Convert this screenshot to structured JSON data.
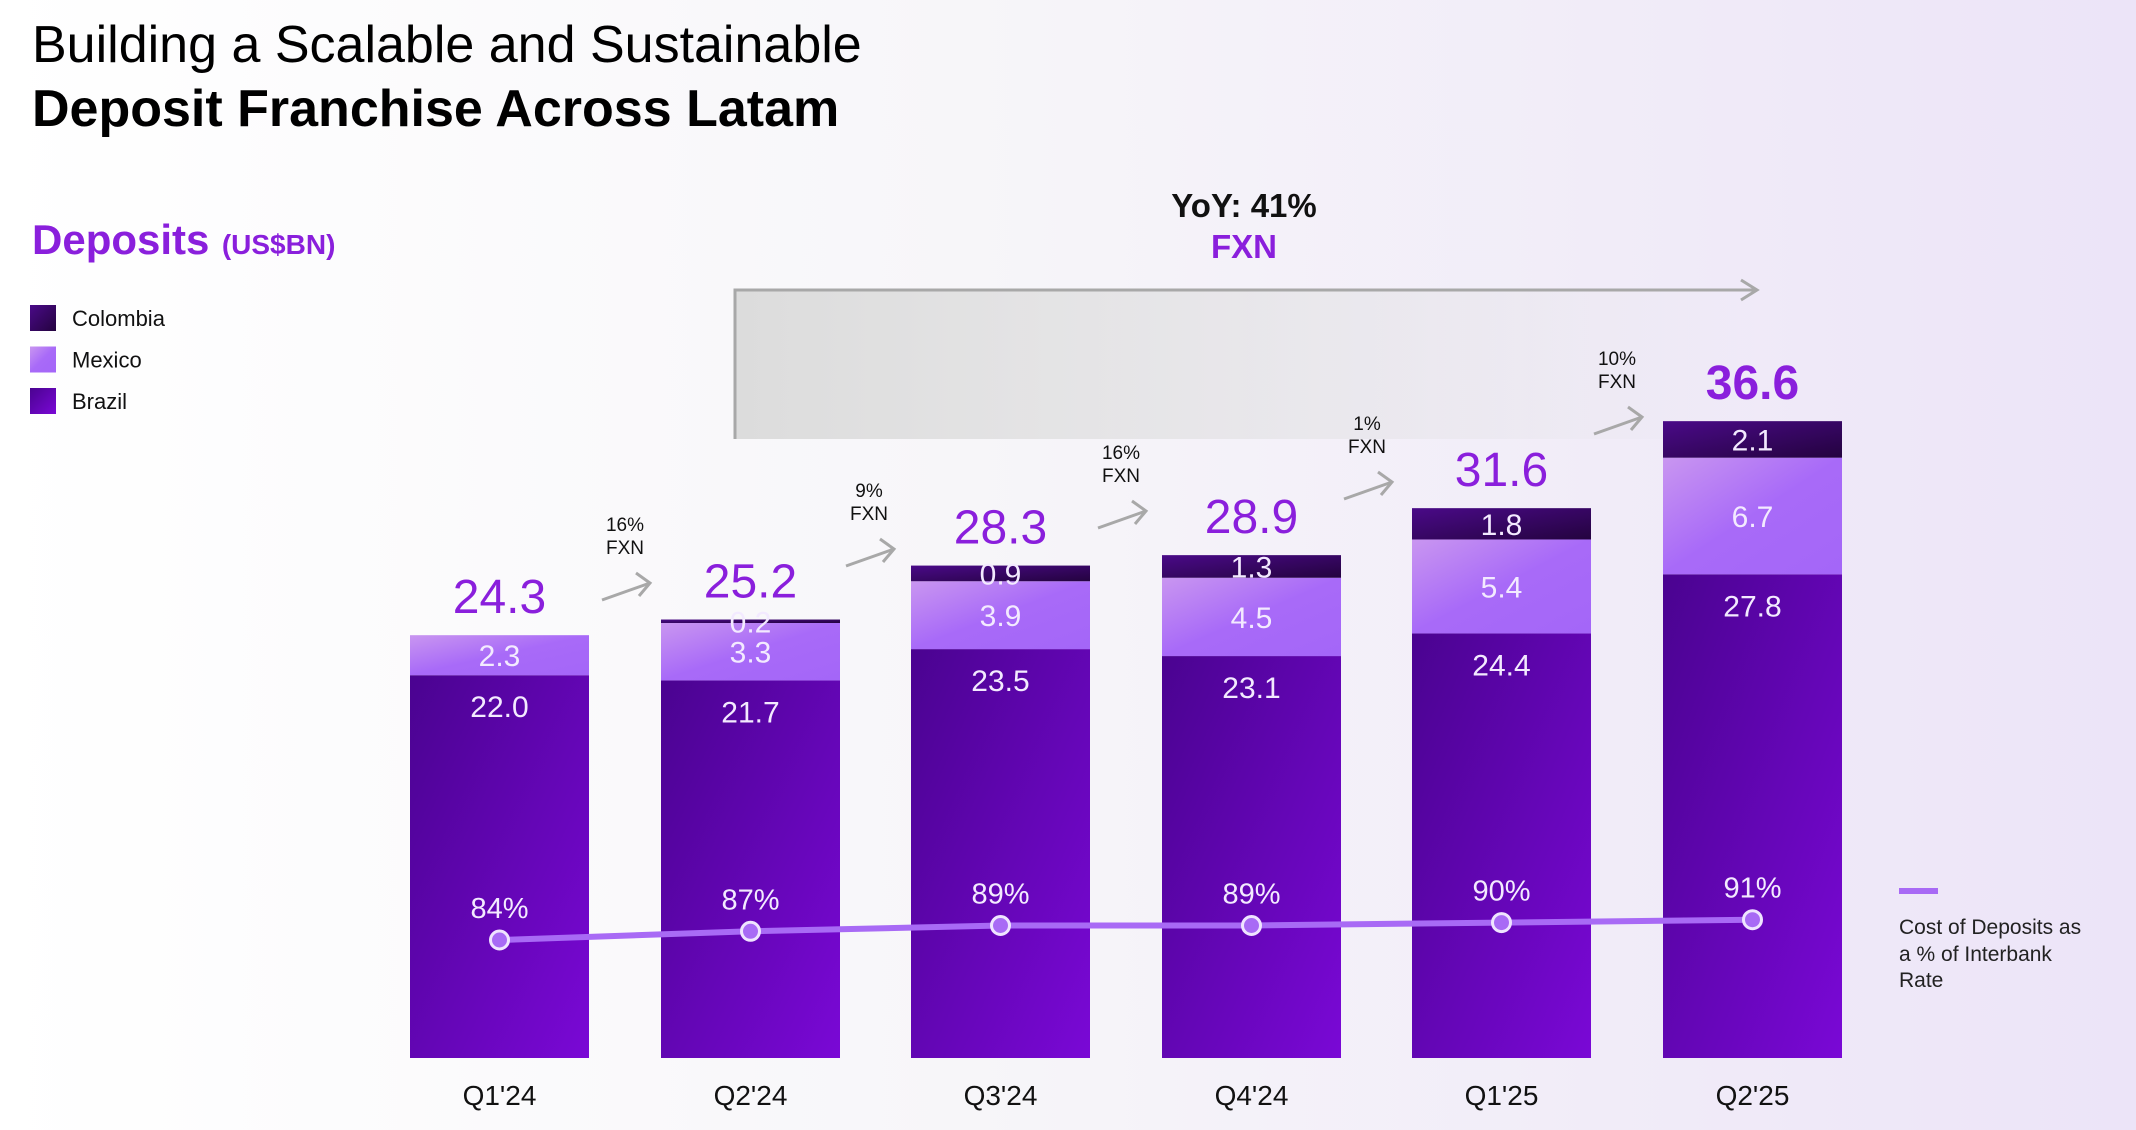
{
  "title_line1": "Building a Scalable and Sustainable",
  "title_line2": "Deposit Franchise Across Latam",
  "chart_data": {
    "type": "bar",
    "stacked": true,
    "title": "Deposits",
    "unit": "(US$BN)",
    "categories": [
      "Q1'24",
      "Q2'24",
      "Q3'24",
      "Q4'24",
      "Q1'25",
      "Q2'25"
    ],
    "series": [
      {
        "name": "Brazil",
        "values": [
          22.0,
          21.7,
          23.5,
          23.1,
          24.4,
          27.8
        ],
        "labels": [
          "22.0",
          "21.7",
          "23.5",
          "23.1",
          "24.4",
          "27.8"
        ],
        "color": "#6a00c2"
      },
      {
        "name": "Mexico",
        "values": [
          2.3,
          3.3,
          3.9,
          4.5,
          5.4,
          6.7
        ],
        "labels": [
          "2.3",
          "3.3",
          "3.9",
          "4.5",
          "5.4",
          "6.7"
        ],
        "color": "#a86af5"
      },
      {
        "name": "Colombia",
        "values": [
          0,
          0.2,
          0.9,
          1.3,
          1.8,
          2.1
        ],
        "labels": [
          "",
          "0.2",
          "0.9",
          "1.3",
          "1.8",
          "2.1"
        ],
        "color": "#2e0555"
      }
    ],
    "totals": [
      "24.3",
      "25.2",
      "28.3",
      "28.9",
      "31.6",
      "36.6"
    ],
    "total_values": [
      24.3,
      25.2,
      28.3,
      28.9,
      31.6,
      36.6
    ],
    "line_series": {
      "name": "Cost of Deposits as a % of Interbank Rate",
      "name_lines": [
        "Cost of Deposits as",
        "a % of Interbank",
        "Rate"
      ],
      "values": [
        84,
        87,
        89,
        89,
        90,
        91
      ],
      "labels": [
        "84%",
        "87%",
        "89%",
        "89%",
        "90%",
        "91%"
      ],
      "color": "#a86af5"
    },
    "growth_annotations": [
      {
        "pct": "16%",
        "label": "FXN"
      },
      {
        "pct": "9%",
        "label": "FXN"
      },
      {
        "pct": "16%",
        "label": "FXN"
      },
      {
        "pct": "1%",
        "label": "FXN"
      },
      {
        "pct": "10%",
        "label": "FXN"
      }
    ],
    "yoy": {
      "label": "YoY: 41%",
      "sub": "FXN"
    },
    "legend": [
      {
        "name": "Colombia",
        "color": "#2e0555"
      },
      {
        "name": "Mexico",
        "color": "#a86af5"
      },
      {
        "name": "Brazil",
        "color": "#6a00c2"
      }
    ],
    "accent": "#8a1fdc"
  }
}
